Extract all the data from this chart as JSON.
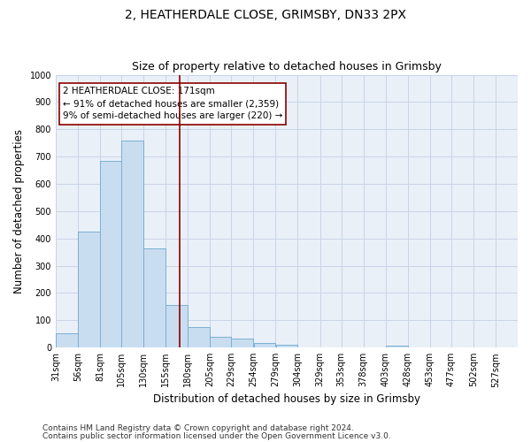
{
  "title": "2, HEATHERDALE CLOSE, GRIMSBY, DN33 2PX",
  "subtitle": "Size of property relative to detached houses in Grimsby",
  "xlabel": "Distribution of detached houses by size in Grimsby",
  "ylabel": "Number of detached properties",
  "footnote1": "Contains HM Land Registry data © Crown copyright and database right 2024.",
  "footnote2": "Contains public sector information licensed under the Open Government Licence v3.0.",
  "annotation_line1": "2 HEATHERDALE CLOSE: 171sqm",
  "annotation_line2": "← 91% of detached houses are smaller (2,359)",
  "annotation_line3": "9% of semi-detached houses are larger (220) →",
  "bar_left_edges": [
    31,
    56,
    81,
    105,
    130,
    155,
    180,
    205,
    229,
    254,
    279,
    304,
    329,
    353,
    378,
    403,
    428,
    453,
    477,
    502
  ],
  "bar_widths": [
    25,
    25,
    24,
    25,
    25,
    25,
    25,
    24,
    25,
    25,
    25,
    25,
    24,
    25,
    25,
    25,
    25,
    24,
    25,
    25
  ],
  "bar_heights": [
    52,
    425,
    685,
    760,
    365,
    155,
    75,
    40,
    32,
    17,
    10,
    0,
    0,
    0,
    0,
    8,
    0,
    0,
    0,
    0
  ],
  "bar_color": "#c9ddf0",
  "bar_edge_color": "#7bafd4",
  "vline_x": 171,
  "vline_color": "#8b0000",
  "ylim": [
    0,
    1000
  ],
  "yticks": [
    0,
    100,
    200,
    300,
    400,
    500,
    600,
    700,
    800,
    900,
    1000
  ],
  "xlim": [
    31,
    552
  ],
  "xtick_labels": [
    "31sqm",
    "56sqm",
    "81sqm",
    "105sqm",
    "130sqm",
    "155sqm",
    "180sqm",
    "205sqm",
    "229sqm",
    "254sqm",
    "279sqm",
    "304sqm",
    "329sqm",
    "353sqm",
    "378sqm",
    "403sqm",
    "428sqm",
    "453sqm",
    "477sqm",
    "502sqm",
    "527sqm"
  ],
  "xtick_positions": [
    31,
    56,
    81,
    105,
    130,
    155,
    180,
    205,
    229,
    254,
    279,
    304,
    329,
    353,
    378,
    403,
    428,
    453,
    477,
    502,
    527
  ],
  "annotation_box_facecolor": "#ffffff",
  "annotation_box_edgecolor": "#8b0000",
  "grid_color": "#c8d4e8",
  "bg_color": "#eaf0f8",
  "title_fontsize": 10,
  "subtitle_fontsize": 9,
  "axis_label_fontsize": 8.5,
  "tick_fontsize": 7,
  "annotation_fontsize": 7.5,
  "footnote_fontsize": 6.5
}
